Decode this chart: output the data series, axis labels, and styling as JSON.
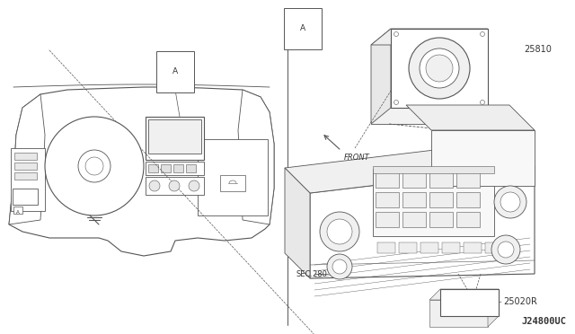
{
  "bg_color": "#ffffff",
  "line_color": "#555555",
  "text_color": "#333333",
  "thin_lw": 0.6,
  "med_lw": 0.8,
  "left_label_A": "A",
  "right_label_A": "A",
  "part_25810": "25810",
  "part_25020R": "25020R",
  "label_front": "FRONT",
  "label_sec280": "SEC.280",
  "label_j24800uc": "J24800UC",
  "font_size_small": 6,
  "font_size_med": 7,
  "font_size_ref": 7.5
}
